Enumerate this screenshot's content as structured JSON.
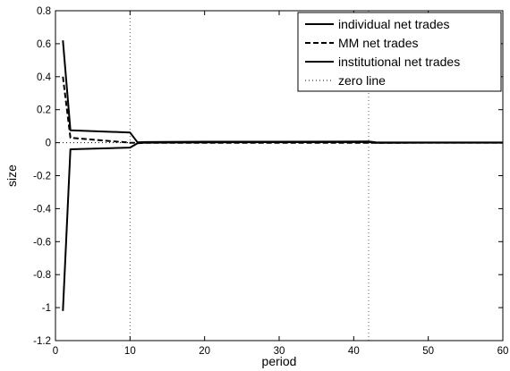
{
  "chart_data": {
    "type": "line",
    "xlabel": "period",
    "ylabel": "size",
    "xlim": [
      0,
      60
    ],
    "ylim": [
      -1.2,
      0.8
    ],
    "xticks": [
      0,
      10,
      20,
      30,
      40,
      50,
      60
    ],
    "yticks": [
      -1.2,
      -1,
      -0.8,
      -0.6,
      -0.4,
      -0.2,
      0,
      0.2,
      0.4,
      0.6,
      0.8
    ],
    "grid": false,
    "legend_position": "top-right",
    "vertical_markers": [
      10,
      42
    ],
    "series": [
      {
        "name": "individual net trades",
        "style": "solid",
        "color": "#000000",
        "x": [
          1,
          2,
          10,
          11,
          12,
          20,
          30,
          42,
          43,
          50,
          60
        ],
        "y": [
          0.62,
          0.075,
          0.062,
          0.002,
          0.004,
          0.006,
          0.006,
          0.007,
          0.002,
          0.001,
          0.001
        ]
      },
      {
        "name": "MM net trades",
        "style": "dashed",
        "color": "#000000",
        "x": [
          1,
          2,
          10,
          11,
          12,
          20,
          30,
          42,
          43,
          50,
          60
        ],
        "y": [
          0.4,
          0.03,
          0.0,
          -0.001,
          -0.001,
          -0.001,
          -0.001,
          -0.001,
          -0.001,
          0.0,
          0.0
        ]
      },
      {
        "name": "institutional net trades",
        "style": "solid",
        "color": "#000000",
        "x": [
          1,
          2,
          10,
          11,
          12,
          20,
          30,
          42,
          43,
          50,
          60
        ],
        "y": [
          -1.02,
          -0.04,
          -0.03,
          -0.003,
          0.0,
          0.002,
          0.003,
          0.004,
          -0.001,
          0.0,
          0.0
        ]
      },
      {
        "name": "zero line",
        "style": "dotted",
        "color": "#000000",
        "x": [
          0,
          60
        ],
        "y": [
          0,
          0
        ]
      }
    ]
  }
}
